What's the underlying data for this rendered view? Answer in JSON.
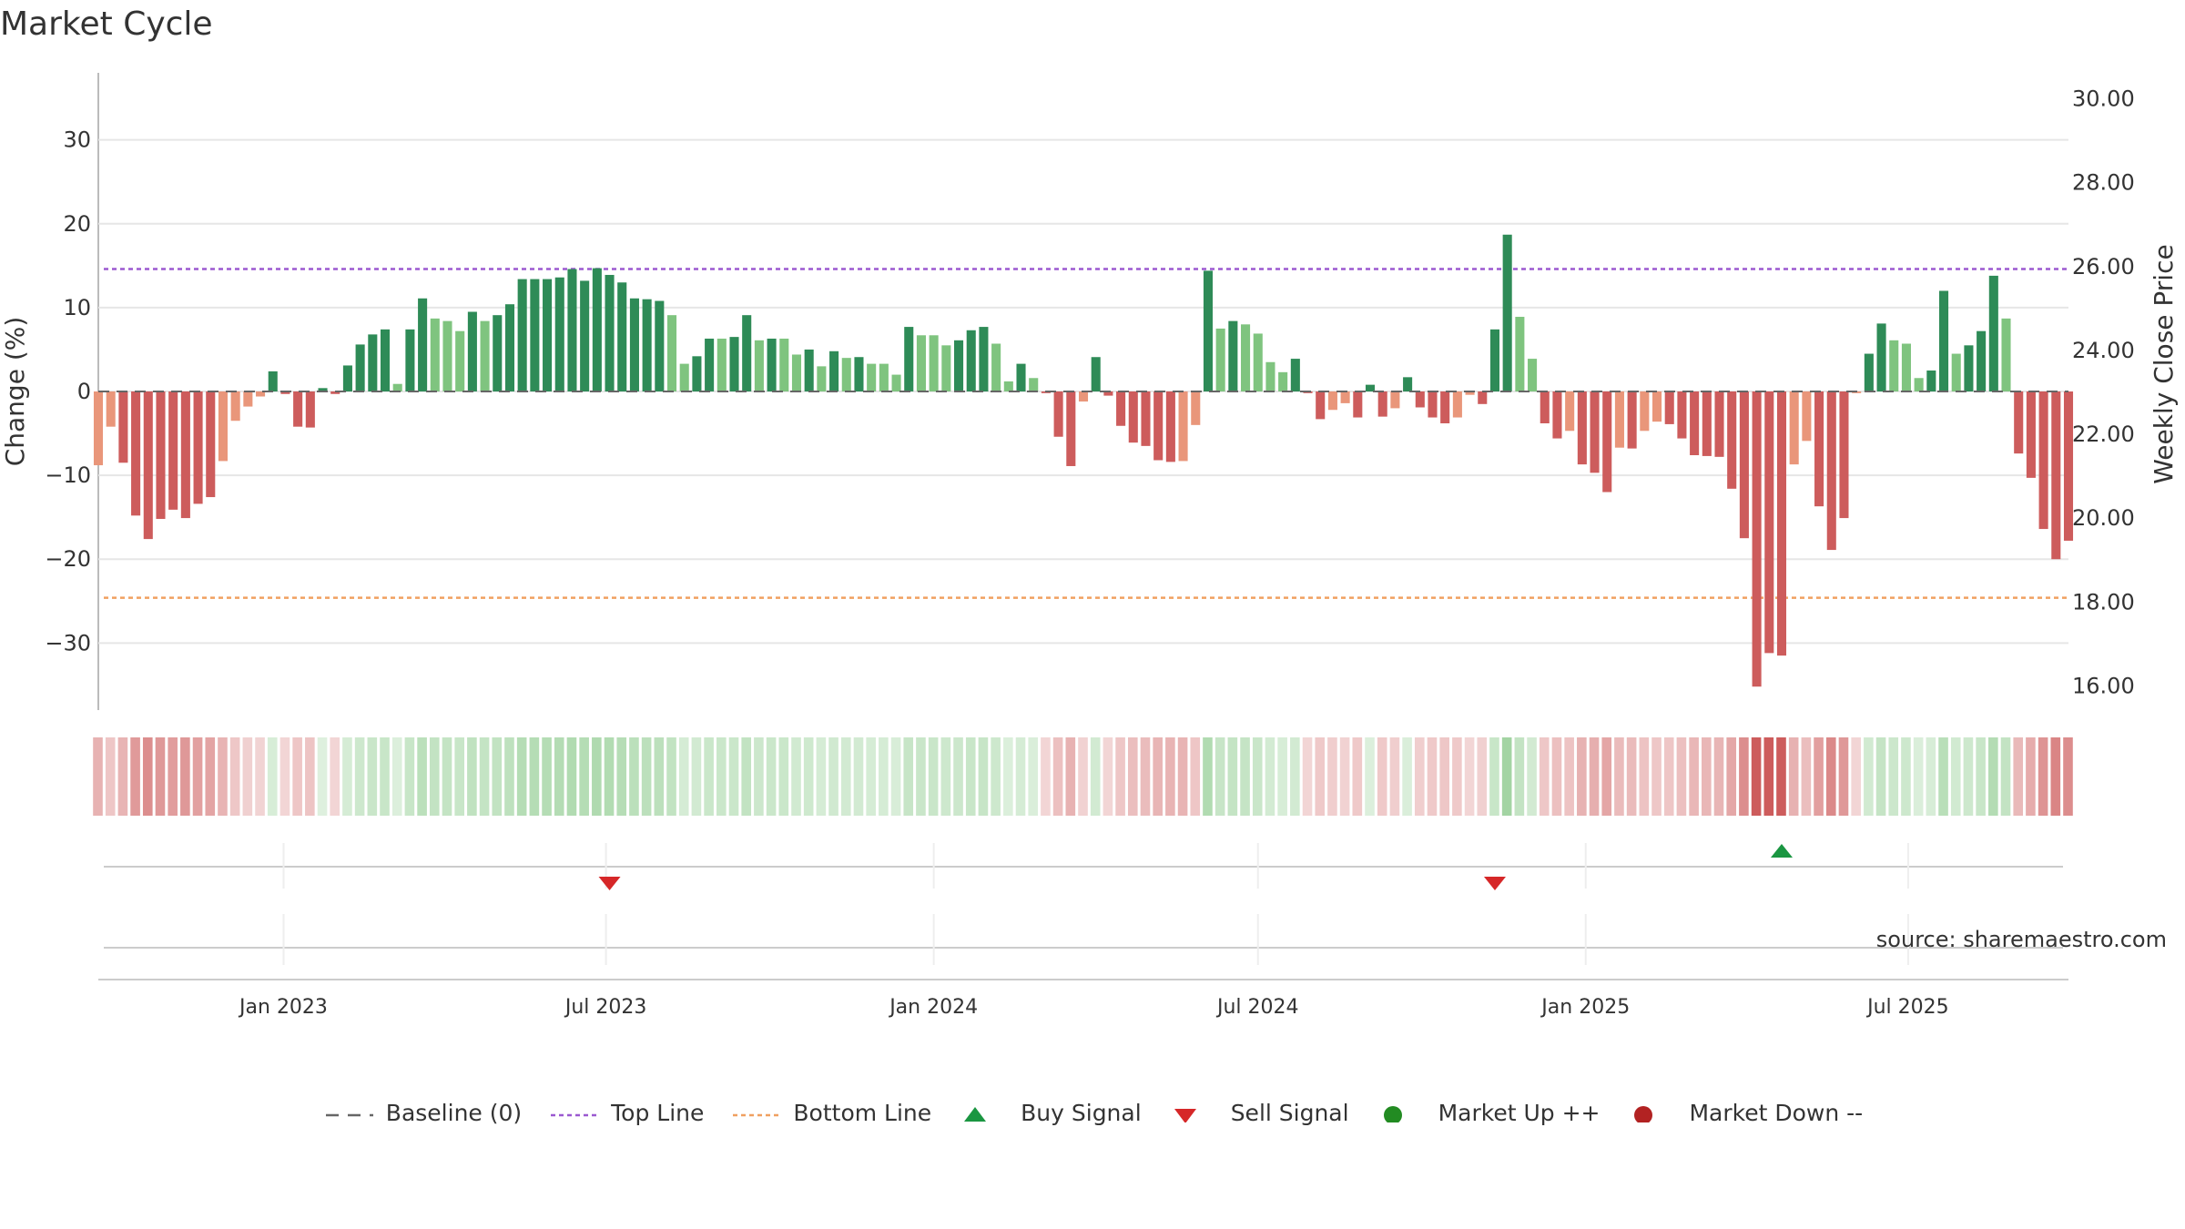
{
  "chart_data": {
    "type": "bar",
    "title": "Market Cycle",
    "ylabel_left": "Change (%)",
    "ylabel_right": "Weekly Close Price",
    "ylim_left": [
      -38,
      38
    ],
    "ylim_right": [
      15.4,
      30.6
    ],
    "yticks_left": [
      30,
      20,
      10,
      0,
      -10,
      -20,
      -30
    ],
    "yticks_left_labels": [
      "30",
      "20",
      "10",
      "0",
      "−10",
      "−20",
      "−30"
    ],
    "yticks_right": [
      30,
      28,
      26,
      24,
      22,
      20,
      18,
      16
    ],
    "yticks_right_labels": [
      "30.00",
      "28.00",
      "26.00",
      "24.00",
      "22.00",
      "20.00",
      "18.00",
      "16.00"
    ],
    "x_start": "2022-09-19",
    "x_end": "2025-09-29",
    "xticks": [
      {
        "date": "2023-01-01",
        "label": "Jan 2023"
      },
      {
        "date": "2023-07-01",
        "label": "Jul 2023"
      },
      {
        "date": "2024-01-01",
        "label": "Jan 2024"
      },
      {
        "date": "2024-07-01",
        "label": "Jul 2024"
      },
      {
        "date": "2025-01-01",
        "label": "Jan 2025"
      },
      {
        "date": "2025-07-01",
        "label": "Jul 2025"
      }
    ],
    "grid": true,
    "top_line": 14.6,
    "bottom_line": -24.6,
    "weekly_start": "2022-09-19",
    "weekly_change": [
      -8.8,
      -4.2,
      -8.5,
      -14.8,
      -17.6,
      -15.2,
      -14.1,
      -15.1,
      -13.4,
      -12.6,
      -8.3,
      -3.5,
      -1.8,
      -0.6,
      2.4,
      -0.3,
      -4.2,
      -4.3,
      0.4,
      -0.3,
      3.1,
      5.6,
      6.8,
      7.4,
      0.9,
      7.4,
      11.1,
      8.7,
      8.4,
      7.2,
      9.5,
      8.4,
      9.1,
      10.4,
      13.4,
      13.4,
      13.4,
      13.6,
      14.6,
      13.2,
      14.7,
      13.9,
      13.0,
      11.1,
      11.0,
      10.8,
      9.1,
      3.3,
      4.2,
      6.3,
      6.3,
      6.5,
      9.1,
      6.1,
      6.3,
      6.3,
      4.4,
      5.0,
      3.0,
      4.8,
      4.0,
      4.1,
      3.3,
      3.3,
      2.0,
      7.7,
      6.7,
      6.7,
      5.5,
      6.1,
      7.3,
      7.7,
      5.7,
      1.2,
      3.3,
      1.6,
      -0.2,
      -5.4,
      -8.9,
      -1.2,
      4.1,
      -0.5,
      -4.1,
      -6.1,
      -6.5,
      -8.2,
      -8.4,
      -8.3,
      -4.0,
      14.4,
      7.5,
      8.4,
      8.0,
      6.9,
      3.5,
      2.3,
      3.9,
      -0.2,
      -3.3,
      -2.2,
      -1.4,
      -3.1,
      0.8,
      -3.0,
      -2.0,
      1.7,
      -1.9,
      -3.1,
      -3.8,
      -3.1,
      -0.4,
      -1.5,
      7.4,
      18.7,
      8.9,
      3.9,
      -3.8,
      -5.6,
      -4.7,
      -8.7,
      -9.7,
      -12.0,
      -6.7,
      -6.8,
      -4.7,
      -3.6,
      -3.9,
      -5.6,
      -7.6,
      -7.7,
      -7.8,
      -11.6,
      -17.5,
      -35.2,
      -31.2,
      -31.5,
      -8.7,
      -5.9,
      -13.7,
      -18.9,
      -15.1,
      -0.2,
      4.5,
      8.1,
      6.1,
      5.7,
      1.6,
      2.5,
      12.0,
      4.5,
      5.5,
      7.2,
      13.8,
      8.7,
      -7.4,
      -10.3,
      -16.4,
      -20.0,
      -17.8
    ],
    "signals": [
      {
        "type": "sell",
        "date": "2023-07-03"
      },
      {
        "type": "sell",
        "date": "2024-11-11"
      },
      {
        "type": "buy",
        "date": "2025-04-21"
      }
    ],
    "colors": {
      "up_strong": "#2e8b57",
      "up_light": "#7fc47f",
      "down_strong": "#cd5c5c",
      "down_light": "#e9967a",
      "top_line": "#9b59d0",
      "bottom_line": "#f0a060",
      "baseline": "#666666",
      "buy": "#1a9641",
      "sell": "#d62728",
      "market_up": "#228b22",
      "market_down": "#b22222"
    },
    "legend": [
      {
        "key": "baseline",
        "label": "Baseline (0)"
      },
      {
        "key": "top",
        "label": "Top Line"
      },
      {
        "key": "bottom",
        "label": "Bottom Line"
      },
      {
        "key": "buy",
        "label": "Buy Signal"
      },
      {
        "key": "sell",
        "label": "Sell Signal"
      },
      {
        "key": "up",
        "label": "Market Up ++"
      },
      {
        "key": "down",
        "label": "Market Down --"
      }
    ],
    "source": "source: sharemaestro.com"
  }
}
